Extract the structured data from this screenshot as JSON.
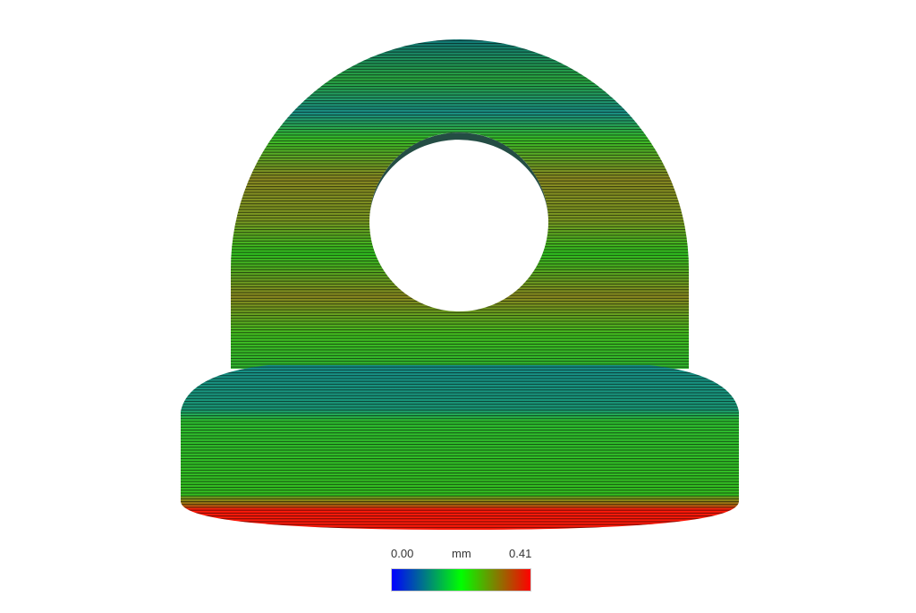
{
  "legend": {
    "min_label": "0.00",
    "unit_label": "mm",
    "max_label": "0.41",
    "colors": [
      "#0000ff",
      "#00ff00",
      "#ff0000"
    ]
  },
  "model_colors": {
    "teal": "#138a7a",
    "green": "#2fc81c",
    "olive": "#8a8a1e",
    "red": "#ff1a0a"
  }
}
